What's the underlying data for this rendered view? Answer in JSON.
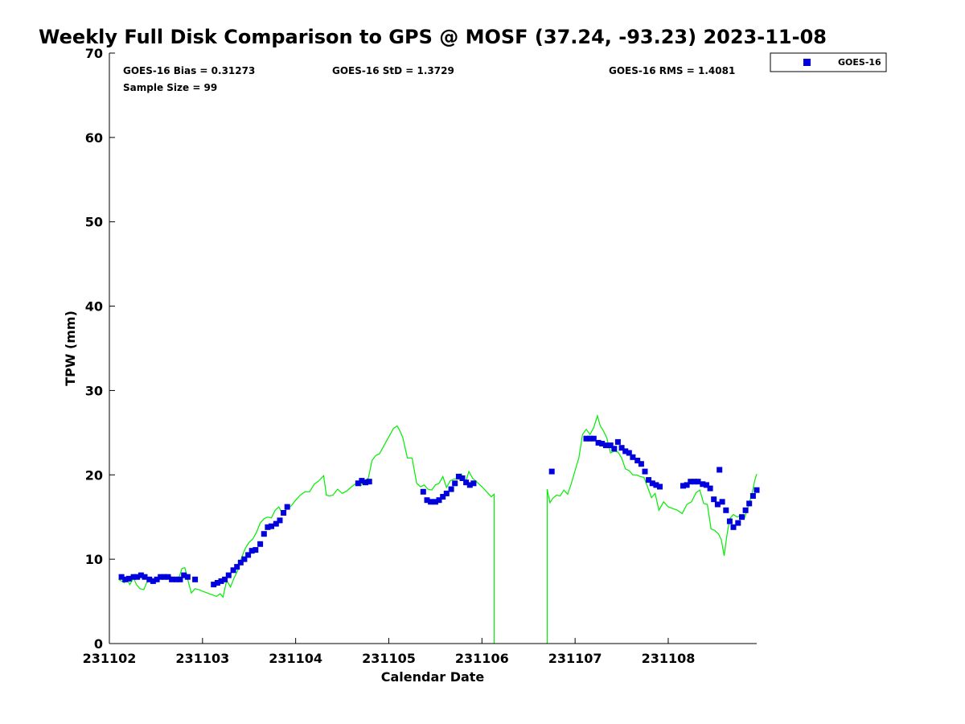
{
  "chart_data": {
    "type": "scatter",
    "title": "Weekly Full Disk Comparison to GPS @ MOSF (37.24, -93.23) 2023-11-08",
    "xlabel": "Calendar Date",
    "ylabel": "TPW (mm)",
    "xlim": [
      231102,
      231108.95
    ],
    "ylim": [
      0,
      70
    ],
    "x_ticks": [
      231102,
      231103,
      231104,
      231105,
      231106,
      231107,
      231108
    ],
    "x_tick_labels": [
      "231102",
      "231103",
      "231104",
      "231105",
      "231106",
      "231107",
      "231108"
    ],
    "y_ticks": [
      0,
      10,
      20,
      30,
      40,
      50,
      60,
      70
    ],
    "y_tick_labels": [
      "0",
      "10",
      "20",
      "30",
      "40",
      "50",
      "60",
      "70"
    ],
    "grid": false,
    "legend_position": "top-right, outside plot",
    "stats": {
      "bias": "GOES-16 Bias = 0.31273",
      "std": "GOES-16 StD = 1.3729",
      "rms": "GOES-16 RMS = 1.4081",
      "sample_size": "Sample Size = 99"
    },
    "series": [
      {
        "name": "GOES-16",
        "color": "#0000dd",
        "marker": "square",
        "x": [
          231102.13,
          231102.17,
          231102.21,
          231102.26,
          231102.3,
          231102.34,
          231102.38,
          231102.43,
          231102.47,
          231102.51,
          231102.55,
          231102.59,
          231102.63,
          231102.67,
          231102.72,
          231102.76,
          231102.8,
          231102.84,
          231102.92,
          231103.12,
          231103.16,
          231103.2,
          231103.24,
          231103.28,
          231103.33,
          231103.37,
          231103.41,
          231103.45,
          231103.49,
          231103.53,
          231103.57,
          231103.62,
          231103.66,
          231103.7,
          231103.74,
          231103.79,
          231103.83,
          231103.87,
          231103.91,
          231104.67,
          231104.71,
          231104.75,
          231104.79,
          231105.37,
          231105.41,
          231105.45,
          231105.5,
          231105.54,
          231105.58,
          231105.62,
          231105.67,
          231105.71,
          231105.75,
          231105.79,
          231105.83,
          231105.87,
          231105.91,
          231106.75,
          231107.12,
          231107.16,
          231107.2,
          231107.25,
          231107.29,
          231107.33,
          231107.38,
          231107.42,
          231107.46,
          231107.5,
          231107.54,
          231107.58,
          231107.62,
          231107.67,
          231107.71,
          231107.75,
          231107.79,
          231107.83,
          231107.87,
          231107.91,
          231108.16,
          231108.2,
          231108.24,
          231108.28,
          231108.32,
          231108.37,
          231108.41,
          231108.45,
          231108.49,
          231108.53,
          231108.58,
          231108.62,
          231108.66,
          231108.7,
          231108.75,
          231108.79,
          231108.83,
          231108.87,
          231108.91,
          231108.95,
          231108.55
        ],
        "y": [
          7.9,
          7.6,
          7.7,
          7.9,
          7.9,
          8.1,
          7.9,
          7.6,
          7.4,
          7.6,
          7.9,
          7.9,
          7.9,
          7.6,
          7.6,
          7.6,
          8.1,
          7.9,
          7.6,
          7.0,
          7.2,
          7.4,
          7.6,
          8.1,
          8.7,
          9.1,
          9.6,
          10.0,
          10.5,
          11.0,
          11.1,
          11.8,
          13.0,
          13.8,
          13.9,
          14.2,
          14.6,
          15.5,
          16.2,
          19.0,
          19.3,
          19.1,
          19.2,
          18.0,
          17.0,
          16.8,
          16.8,
          17.0,
          17.4,
          17.8,
          18.3,
          19.0,
          19.8,
          19.6,
          19.1,
          18.8,
          19.0,
          20.4,
          24.3,
          24.3,
          24.3,
          23.8,
          23.7,
          23.5,
          23.5,
          23.1,
          23.9,
          23.2,
          22.8,
          22.6,
          22.1,
          21.7,
          21.3,
          20.4,
          19.4,
          19.0,
          18.8,
          18.6,
          18.7,
          18.8,
          19.2,
          19.2,
          19.2,
          18.9,
          18.8,
          18.4,
          17.1,
          16.5,
          16.8,
          15.8,
          14.5,
          13.8,
          14.3,
          15.0,
          15.8,
          16.6,
          17.5,
          18.2,
          20.6
        ]
      },
      {
        "name": "",
        "color": "#00ee00",
        "marker": "line",
        "segments": [
          {
            "x": [
              231102.1,
              231102.13,
              231102.16,
              231102.19,
              231102.22,
              231102.26,
              231102.29,
              231102.33,
              231102.37,
              231102.4,
              231102.44,
              231102.48,
              231102.52,
              231102.56,
              231102.6,
              231102.63,
              231102.67,
              231102.7,
              231102.74,
              231102.78,
              231102.81,
              231102.85,
              231102.88,
              231102.92,
              231102.96,
              231103.0,
              231103.05,
              231103.1,
              231103.15,
              231103.19,
              231103.22,
              231103.26,
              231103.3,
              231103.34,
              231103.38,
              231103.42,
              231103.46,
              231103.5,
              231103.54,
              231103.58,
              231103.62,
              231103.66,
              231103.7,
              231103.74,
              231103.78,
              231103.82,
              231103.86,
              231103.9,
              231103.95,
              231104.0,
              231104.05,
              231104.1,
              231104.15,
              231104.2,
              231104.25,
              231104.3,
              231104.33,
              231104.36,
              231104.4,
              231104.45,
              231104.5,
              231104.55,
              231104.6,
              231104.65,
              231104.7,
              231104.74,
              231104.78,
              231104.82,
              231104.86,
              231104.9,
              231104.95,
              231105.0,
              231105.05,
              231105.09,
              231105.12,
              231105.15,
              231105.2,
              231105.25,
              231105.3,
              231105.34,
              231105.38,
              231105.42,
              231105.46,
              231105.5,
              231105.54,
              231105.58,
              231105.62,
              231105.66,
              231105.7,
              231105.74,
              231105.78,
              231105.82,
              231105.86,
              231105.9,
              231105.95,
              231106.0,
              231106.05,
              231106.1,
              231106.13,
              231106.13
            ],
            "y": [
              7.6,
              7.4,
              7.2,
              7.6,
              7.0,
              7.8,
              7.0,
              6.5,
              6.4,
              7.2,
              7.6,
              7.3,
              7.6,
              8.0,
              8.2,
              8.0,
              7.9,
              7.4,
              7.6,
              8.9,
              9.0,
              7.2,
              6.0,
              6.5,
              6.4,
              6.2,
              6.0,
              5.8,
              5.6,
              5.9,
              5.5,
              7.5,
              6.7,
              7.8,
              8.7,
              10.2,
              11.3,
              12.0,
              12.4,
              13.2,
              14.3,
              14.8,
              15.0,
              14.9,
              15.8,
              16.2,
              15.3,
              15.9,
              16.3,
              17.0,
              17.6,
              18.0,
              18.0,
              18.9,
              19.3,
              19.9,
              17.6,
              17.5,
              17.6,
              18.3,
              17.8,
              18.1,
              18.6,
              19.0,
              18.7,
              19.3,
              19.6,
              21.7,
              22.3,
              22.5,
              23.5,
              24.5,
              25.5,
              25.8,
              25.2,
              24.4,
              22.0,
              22.0,
              19.0,
              18.6,
              18.8,
              18.3,
              18.2,
              18.8,
              19.0,
              19.8,
              18.5,
              19.3,
              19.5,
              19.5,
              20.1,
              19.0,
              20.4,
              19.6,
              19.1,
              18.6,
              18.0,
              17.4,
              17.7,
              0.0
            ]
          },
          {
            "x": [
              231106.7,
              231106.7,
              231106.73,
              231106.76,
              231106.8,
              231106.84,
              231106.88,
              231106.92,
              231106.96,
              231107.0,
              231107.04,
              231107.08,
              231107.12,
              231107.16,
              231107.2,
              231107.24,
              231107.27,
              231107.3,
              231107.34,
              231107.38,
              231107.42,
              231107.46,
              231107.5,
              231107.54,
              231107.58,
              231107.62,
              231107.66,
              231107.7,
              231107.74,
              231107.78,
              231107.82,
              231107.86,
              231107.9,
              231107.95,
              231108.0,
              231108.05,
              231108.1,
              231108.15,
              231108.2,
              231108.25,
              231108.3,
              231108.34,
              231108.38,
              231108.42,
              231108.46,
              231108.5,
              231108.54,
              231108.57,
              231108.6,
              231108.63,
              231108.66,
              231108.7,
              231108.74,
              231108.78,
              231108.82,
              231108.86,
              231108.9,
              231108.93,
              231108.95
            ],
            "y": [
              0.0,
              18.3,
              16.7,
              17.2,
              17.6,
              17.5,
              18.2,
              17.7,
              19.0,
              20.5,
              22.0,
              24.8,
              25.4,
              24.8,
              25.6,
              27.0,
              25.8,
              25.3,
              24.4,
              22.6,
              22.8,
              22.7,
              22.0,
              20.7,
              20.5,
              20.0,
              20.0,
              19.8,
              19.7,
              18.5,
              17.3,
              17.8,
              15.8,
              16.8,
              16.2,
              16.0,
              15.8,
              15.4,
              16.5,
              16.8,
              17.9,
              18.2,
              16.6,
              16.5,
              13.6,
              13.4,
              13.0,
              12.3,
              10.4,
              12.8,
              14.8,
              15.3,
              15.0,
              15.2,
              14.9,
              16.3,
              17.8,
              19.4,
              20.1
            ]
          }
        ]
      }
    ]
  }
}
